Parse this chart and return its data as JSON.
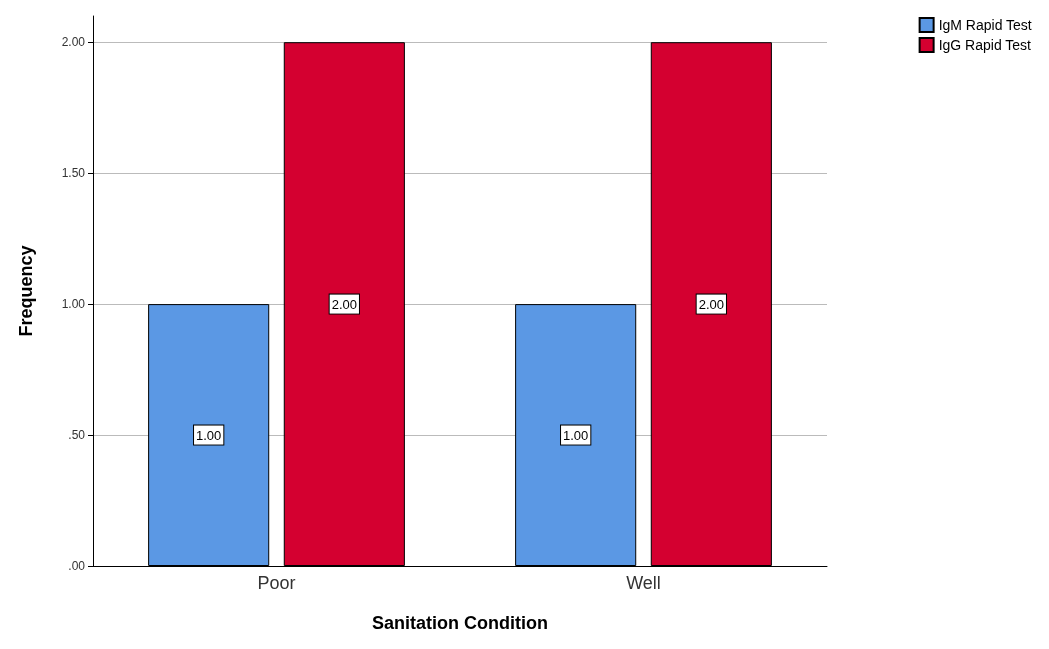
{
  "chart_data": {
    "type": "bar",
    "xlabel": "Sanitation Condition",
    "ylabel": "Frequency",
    "categories": [
      "Poor",
      "Well"
    ],
    "series": [
      {
        "name": "IgM Rapid Test",
        "color": "#5b98e4",
        "values": [
          1,
          1
        ],
        "value_labels": [
          "1.00",
          "1.00"
        ]
      },
      {
        "name": "IgG Rapid Test",
        "color": "#d40030",
        "values": [
          2,
          2
        ],
        "value_labels": [
          "2.00",
          "2.00"
        ]
      }
    ],
    "ylim": [
      0,
      2.1
    ],
    "yticks": [
      {
        "value": 0,
        "label": ".00"
      },
      {
        "value": 0.5,
        "label": ".50"
      },
      {
        "value": 1,
        "label": "1.00"
      },
      {
        "value": 1.5,
        "label": "1.50"
      },
      {
        "value": 2,
        "label": "2.00"
      }
    ],
    "grid": "y",
    "legend": "top right"
  }
}
